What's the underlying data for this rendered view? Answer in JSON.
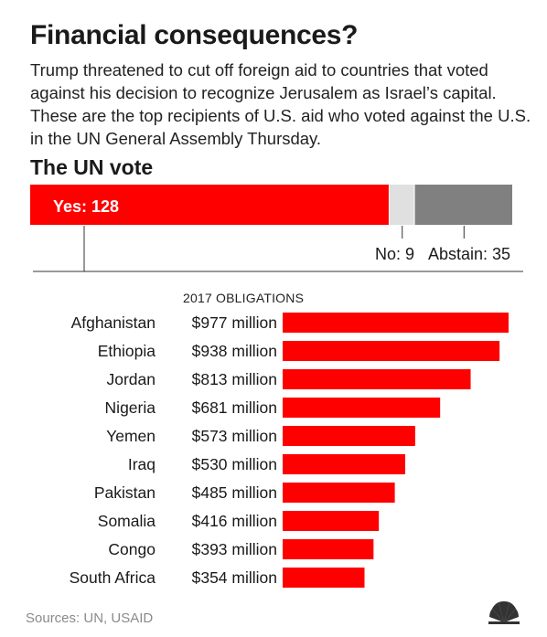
{
  "title": "Financial consequences?",
  "subtitle": "Trump threatened to cut off foreign aid to countries that voted against his decision to recognize Jerusalem as Israel’s capital. These are the top recipients of U.S. aid who voted against the U.S. in the UN General Assembly Thursday.",
  "vote": {
    "title": "The UN vote",
    "segments": [
      {
        "key": "yes",
        "label": "Yes: 128",
        "value": 128,
        "color": "#ff0000"
      },
      {
        "key": "no",
        "label": "No: 9",
        "value": 9,
        "color": "#e0e0e0"
      },
      {
        "key": "abstain",
        "label": "Abstain: 35",
        "value": 35,
        "color": "#808080"
      }
    ]
  },
  "obligations_header": "2017 OBLIGATIONS",
  "chart_data": {
    "type": "bar",
    "orientation": "horizontal",
    "categories": [
      "Afghanistan",
      "Ethiopia",
      "Jordan",
      "Nigeria",
      "Yemen",
      "Iraq",
      "Pakistan",
      "Somalia",
      "Congo",
      "South Africa"
    ],
    "values": [
      977,
      938,
      813,
      681,
      573,
      530,
      485,
      416,
      393,
      354
    ],
    "value_labels": [
      "$977 million",
      "$938 million",
      "$813 million",
      "$681 million",
      "$573 million",
      "$530 million",
      "$485 million",
      "$416 million",
      "$393 million",
      "$354 million"
    ],
    "bar_color": "#ff0000"
  },
  "sources": "Sources: UN, USAID",
  "logo_icon": "nbc-peacock-icon",
  "colors": {
    "accent": "#ff0000",
    "text": "#1a1a1a",
    "muted": "#8a8a8a"
  }
}
